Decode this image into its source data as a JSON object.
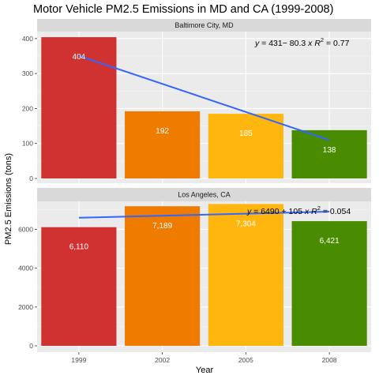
{
  "chart_data": {
    "type": "bar",
    "title": "Motor Vehicle PM2.5 Emissions in MD and CA (1999-2008)",
    "xlabel": "Year",
    "ylabel": "PM2.5 Emissions (tons)",
    "categories": [
      "1999",
      "2002",
      "2005",
      "2008"
    ],
    "bar_colors": [
      "#d03232",
      "#ef7b00",
      "#ffb70f",
      "#4a8c00"
    ],
    "trend_color": "#3366ff",
    "grid": true,
    "facets": [
      {
        "label": "Baltimore City, MD",
        "values": [
          404,
          192,
          185,
          138
        ],
        "value_labels": [
          "404",
          "192",
          "185",
          "138"
        ],
        "ylim": [
          0,
          420
        ],
        "yticks": [
          0,
          100,
          200,
          300,
          400
        ],
        "ytick_labels": [
          "0",
          "100",
          "200",
          "300",
          "400"
        ],
        "trend": {
          "intercept": 431,
          "slope": -80.3
        },
        "equation": {
          "y": "y",
          "eq": " = 431− 80.3 ",
          "x": "x",
          "r": "R",
          "sup": "2",
          "rval": " = 0.77"
        }
      },
      {
        "label": "Los Angeles, CA",
        "values": [
          6110,
          7189,
          7304,
          6421
        ],
        "value_labels": [
          "6,110",
          "7,189",
          "7,304",
          "6,421"
        ],
        "ylim": [
          0,
          7400
        ],
        "yticks": [
          0,
          2000,
          4000,
          6000
        ],
        "ytick_labels": [
          "0",
          "2000",
          "4000",
          "6000"
        ],
        "trend": {
          "intercept": 6490,
          "slope": 105
        },
        "equation": {
          "y": "y",
          "eq": " = 6490 + 105 ",
          "x": "x",
          "r": "R",
          "sup": "2",
          "rval": " = 0.054"
        }
      }
    ]
  }
}
